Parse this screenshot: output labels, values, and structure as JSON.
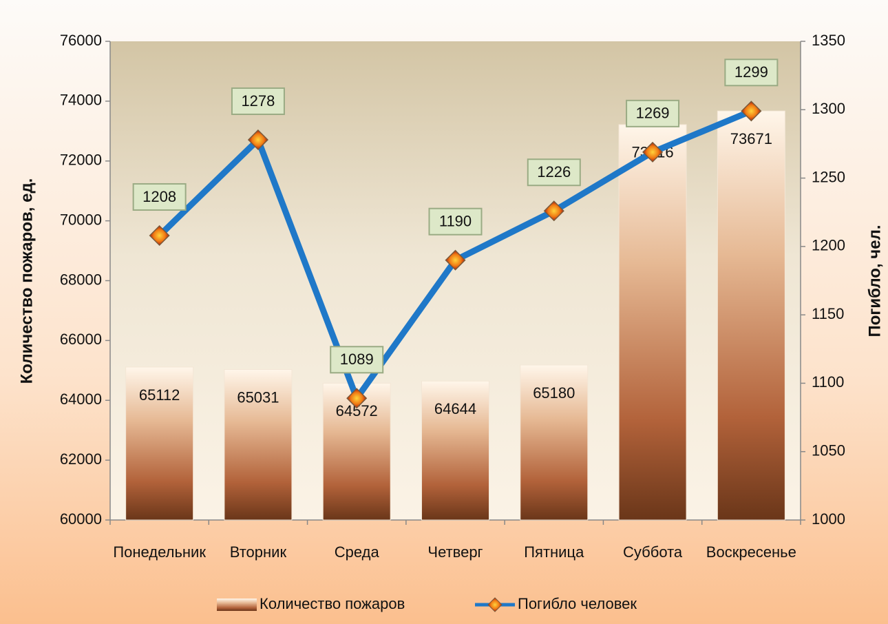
{
  "chart_data": {
    "type": "bar",
    "categories": [
      "Понедельник",
      "Вторник",
      "Среда",
      "Четверг",
      "Пятница",
      "Суббота",
      "Воскресенье"
    ],
    "series": [
      {
        "name": "Количество пожаров",
        "color": "#8a4a24",
        "values": [
          65112,
          65031,
          64572,
          64644,
          65180,
          73216,
          73671
        ]
      },
      {
        "name": "Погибло человек",
        "type": "line",
        "axis": "y2",
        "color": "#1f78c8",
        "values": [
          1208,
          1278,
          1089,
          1190,
          1226,
          1269,
          1299
        ]
      }
    ],
    "ylabel": "Количество пожаров, ед.",
    "y2label": "Погибло, чел.",
    "ylim": [
      60000,
      76000
    ],
    "yticks": [
      60000,
      62000,
      64000,
      66000,
      68000,
      70000,
      72000,
      74000,
      76000
    ],
    "y2lim": [
      1000,
      1350
    ],
    "y2ticks": [
      1000,
      1050,
      1100,
      1150,
      1200,
      1250,
      1300,
      1350
    ],
    "legend": "bottom"
  }
}
